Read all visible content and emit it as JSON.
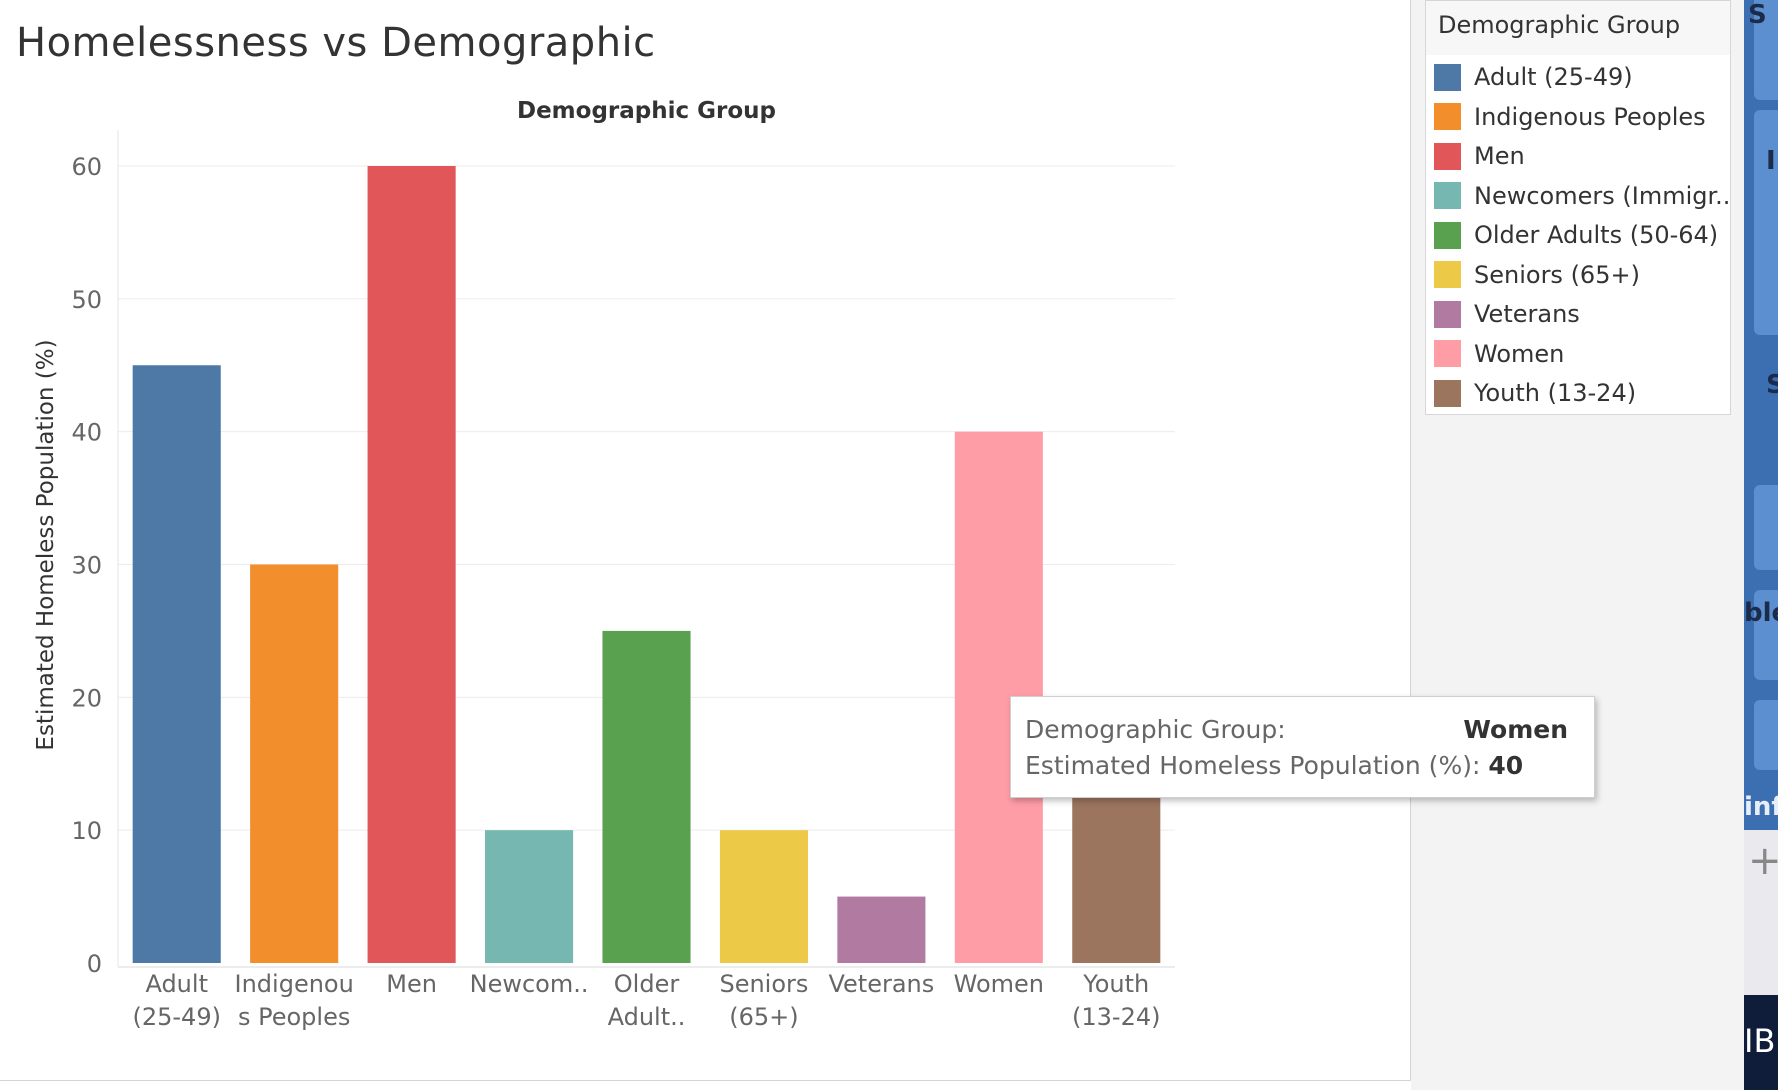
{
  "sheet": {
    "title": "Homelessness vs Demographic"
  },
  "chart_data": {
    "type": "bar",
    "title": "Demographic Group",
    "xlabel": "",
    "ylabel": "Estimated Homeless Population (%)",
    "ylim": [
      0,
      60
    ],
    "yticks": [
      0,
      10,
      20,
      30,
      40,
      50,
      60
    ],
    "grid": true,
    "categories": [
      "Adult (25-49)",
      "Indigenous Peoples",
      "Men",
      "Newcomers (Immigr..",
      "Older Adults (50-64)",
      "Seniors (65+)",
      "Veterans",
      "Women",
      "Youth (13-24)"
    ],
    "tick_labels": [
      [
        "Adult",
        "(25-49)"
      ],
      [
        "Indigenou",
        "s Peoples"
      ],
      [
        "Men"
      ],
      [
        "Newcom.."
      ],
      [
        "Older",
        "Adult.."
      ],
      [
        "Seniors",
        "(65+)"
      ],
      [
        "Veterans"
      ],
      [
        "Women"
      ],
      [
        "Youth",
        "(13-24)"
      ]
    ],
    "values": [
      45,
      30,
      60,
      10,
      25,
      10,
      5,
      40,
      15
    ],
    "colors": [
      "#4e79a7",
      "#f28e2b",
      "#e15759",
      "#76b7b2",
      "#59a14f",
      "#edc948",
      "#b07aa1",
      "#ff9da7",
      "#9c755f"
    ]
  },
  "legend": {
    "title": "Demographic Group",
    "items": [
      {
        "label": "Adult (25-49)",
        "color": "#4e79a7"
      },
      {
        "label": "Indigenous Peoples",
        "color": "#f28e2b"
      },
      {
        "label": "Men",
        "color": "#e15759"
      },
      {
        "label": "Newcomers (Immigr..",
        "color": "#76b7b2"
      },
      {
        "label": "Older Adults (50-64)",
        "color": "#59a14f"
      },
      {
        "label": "Seniors (65+)",
        "color": "#edc948"
      },
      {
        "label": "Veterans",
        "color": "#b07aa1"
      },
      {
        "label": "Women",
        "color": "#ff9da7"
      },
      {
        "label": "Youth (13-24)",
        "color": "#9c755f"
      }
    ]
  },
  "tooltip": {
    "group_key": "Demographic Group:",
    "group_value": "Women",
    "pop_key": "Estimated Homeless Population (%):",
    "pop_value": "40"
  },
  "edge": {
    "texts": [
      "S",
      "I",
      "S",
      "ble",
      "inf",
      "+",
      "IB"
    ]
  }
}
